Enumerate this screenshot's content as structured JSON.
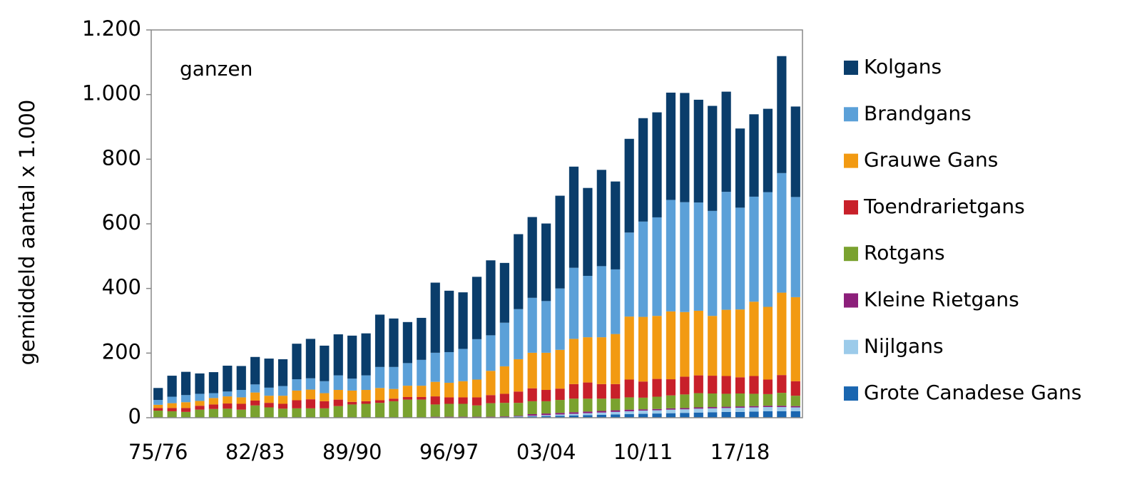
{
  "chart_data": {
    "type": "stacked-bar",
    "annotation": "ganzen",
    "y_label": "gemiddeld aantal x 1.000",
    "categories": [
      "75/76",
      null,
      null,
      null,
      null,
      null,
      null,
      "82/83",
      null,
      null,
      null,
      null,
      null,
      null,
      "89/90",
      null,
      null,
      null,
      null,
      null,
      null,
      "96/97",
      null,
      null,
      null,
      null,
      null,
      null,
      "03/04",
      null,
      null,
      null,
      null,
      null,
      null,
      "10/11",
      null,
      null,
      null,
      null,
      null,
      null,
      "17/18",
      null,
      null,
      null,
      null
    ],
    "ylim": [
      0,
      1200
    ],
    "yticks": [
      0,
      200,
      400,
      600,
      800,
      {
        "value": 1000,
        "label": "1.000"
      },
      {
        "value": 1200,
        "label": "1.200"
      }
    ],
    "legend": "right",
    "series": [
      {
        "name": "Grote Canadese Gans",
        "color": "#1a66b0",
        "values": [
          0,
          0,
          0,
          0,
          0,
          0,
          0,
          0,
          0,
          0,
          0,
          0,
          0,
          0,
          0,
          0,
          0,
          0,
          0,
          0,
          1,
          1,
          1,
          1,
          1,
          2,
          3,
          4,
          5,
          6,
          7,
          8,
          9,
          10,
          11,
          12,
          13,
          14,
          15,
          16,
          17,
          18,
          18,
          19,
          20,
          20,
          20
        ]
      },
      {
        "name": "Nijlgans",
        "color": "#9ccbea",
        "values": [
          0,
          0,
          0,
          0,
          0,
          0,
          0,
          0,
          0,
          0,
          0,
          0,
          0,
          0,
          0,
          0,
          0,
          0,
          0,
          0,
          0,
          0,
          0,
          0,
          0,
          0,
          1,
          2,
          3,
          4,
          5,
          6,
          7,
          8,
          9,
          10,
          10,
          11,
          11,
          12,
          12,
          12,
          13,
          13,
          13,
          13,
          12
        ]
      },
      {
        "name": "Kleine Rietgans",
        "color": "#8c1f7a",
        "values": [
          0,
          0,
          0,
          0,
          0,
          0,
          0,
          0,
          0,
          0,
          1,
          1,
          1,
          1,
          1,
          1,
          1,
          1,
          1,
          1,
          2,
          2,
          2,
          2,
          2,
          2,
          2,
          5,
          5,
          5,
          5,
          5,
          5,
          5,
          5,
          4,
          4,
          4,
          4,
          4,
          4,
          4,
          4,
          4,
          4,
          4,
          4
        ]
      },
      {
        "name": "Rotgans",
        "color": "#7aa22f",
        "values": [
          22,
          20,
          18,
          25,
          27,
          28,
          25,
          38,
          32,
          28,
          28,
          28,
          28,
          35,
          40,
          42,
          45,
          50,
          55,
          55,
          38,
          40,
          40,
          35,
          42,
          42,
          40,
          40,
          38,
          40,
          42,
          40,
          38,
          36,
          38,
          36,
          38,
          40,
          42,
          44,
          42,
          40,
          40,
          38,
          36,
          40,
          32
        ]
      },
      {
        "name": "Toendrarietgans",
        "color": "#c8202a",
        "values": [
          8,
          10,
          12,
          12,
          14,
          16,
          18,
          15,
          14,
          15,
          25,
          28,
          22,
          20,
          8,
          8,
          8,
          8,
          8,
          8,
          25,
          20,
          20,
          25,
          25,
          28,
          35,
          40,
          35,
          35,
          45,
          50,
          45,
          45,
          55,
          50,
          55,
          50,
          55,
          55,
          55,
          55,
          50,
          55,
          45,
          55,
          45
        ]
      },
      {
        "name": "Grauwe Gans",
        "color": "#f29a12",
        "values": [
          10,
          15,
          18,
          15,
          20,
          22,
          20,
          25,
          22,
          25,
          30,
          30,
          25,
          30,
          35,
          35,
          38,
          30,
          35,
          35,
          45,
          45,
          50,
          55,
          75,
          85,
          100,
          110,
          115,
          120,
          140,
          140,
          145,
          155,
          195,
          200,
          195,
          210,
          200,
          200,
          185,
          205,
          210,
          230,
          225,
          255,
          260
        ]
      },
      {
        "name": "Brandgans",
        "color": "#5ba0d8",
        "values": [
          15,
          20,
          22,
          22,
          15,
          15,
          23,
          25,
          25,
          30,
          35,
          35,
          37,
          45,
          37,
          45,
          65,
          68,
          70,
          80,
          90,
          95,
          100,
          125,
          110,
          135,
          155,
          170,
          160,
          190,
          220,
          190,
          220,
          200,
          260,
          295,
          305,
          345,
          340,
          335,
          325,
          365,
          315,
          325,
          355,
          370,
          310
        ]
      },
      {
        "name": "Kolgans",
        "color": "#0a3d6b",
        "values": [
          37,
          65,
          72,
          63,
          65,
          80,
          74,
          85,
          90,
          83,
          110,
          122,
          110,
          127,
          133,
          130,
          162,
          150,
          127,
          130,
          217,
          190,
          175,
          193,
          232,
          185,
          232,
          250,
          240,
          287,
          313,
          272,
          298,
          272,
          290,
          320,
          325,
          332,
          338,
          318,
          325,
          310,
          245,
          255,
          258,
          362,
          280
        ]
      }
    ]
  }
}
